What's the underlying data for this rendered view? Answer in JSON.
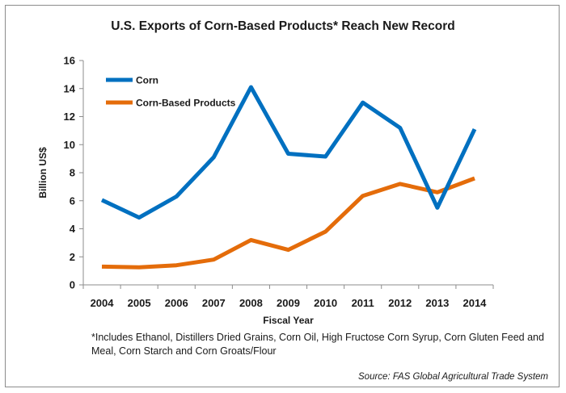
{
  "chart_data": {
    "type": "line",
    "title": "U.S. Exports of Corn-Based Products* Reach New Record",
    "xlabel": "Fiscal Year",
    "ylabel": "Billion US$",
    "ylim": [
      0,
      16
    ],
    "yticks": [
      0,
      2,
      4,
      6,
      8,
      10,
      12,
      14,
      16
    ],
    "grid": false,
    "legend_position": "top-left",
    "categories": [
      "2004",
      "2005",
      "2006",
      "2007",
      "2008",
      "2009",
      "2010",
      "2011",
      "2012",
      "2013",
      "2014"
    ],
    "series": [
      {
        "name": "Corn",
        "color": "#0070c0",
        "values": [
          6.05,
          4.8,
          6.3,
          9.1,
          14.1,
          9.35,
          9.15,
          13.0,
          11.2,
          5.5,
          11.1
        ]
      },
      {
        "name": "Corn-Based Products",
        "color": "#e46c0a",
        "values": [
          1.3,
          1.25,
          1.4,
          1.8,
          3.2,
          2.5,
          3.8,
          6.35,
          7.2,
          6.6,
          7.6
        ]
      }
    ],
    "footnote": "*Includes Ethanol, Distillers Dried Grains, Corn Oil, High Fructose Corn Syrup, Corn Gluten Feed and Meal, Corn Starch and Corn Groats/Flour",
    "source": "Source: FAS Global Agricultural Trade System"
  }
}
